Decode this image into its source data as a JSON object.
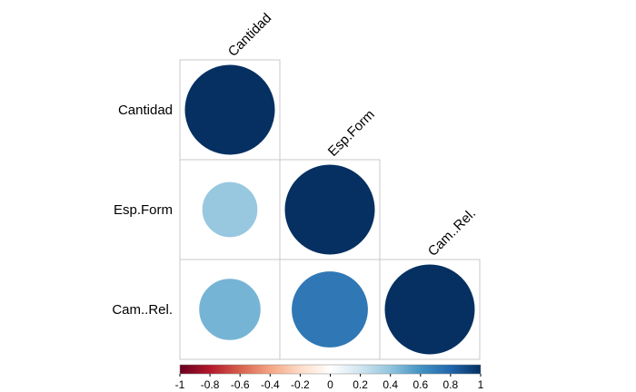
{
  "chart_data": {
    "type": "heatmap",
    "subtype": "correlation-circles-lower-triangle",
    "variables": [
      "Cantidad",
      "Esp.Form",
      "Cam..Rel."
    ],
    "matrix": [
      [
        1.0,
        null,
        null
      ],
      [
        0.38,
        1.0,
        null
      ],
      [
        0.47,
        0.72,
        1.0
      ]
    ],
    "colorbar": {
      "range": [
        -1,
        1
      ],
      "ticks": [
        "-1",
        "-0.8",
        "-0.6",
        "-0.4",
        "-0.2",
        "0",
        "0.2",
        "0.4",
        "0.6",
        "0.8",
        "1"
      ],
      "placement": "bottom",
      "colors": [
        "#67001F",
        "#B2182B",
        "#D6604D",
        "#F4A582",
        "#FDDBC7",
        "#FFFFFF",
        "#D1E5F0",
        "#92C5DE",
        "#4393C3",
        "#2166AC",
        "#053061"
      ]
    },
    "title": "",
    "xlabel": "",
    "ylabel": ""
  }
}
